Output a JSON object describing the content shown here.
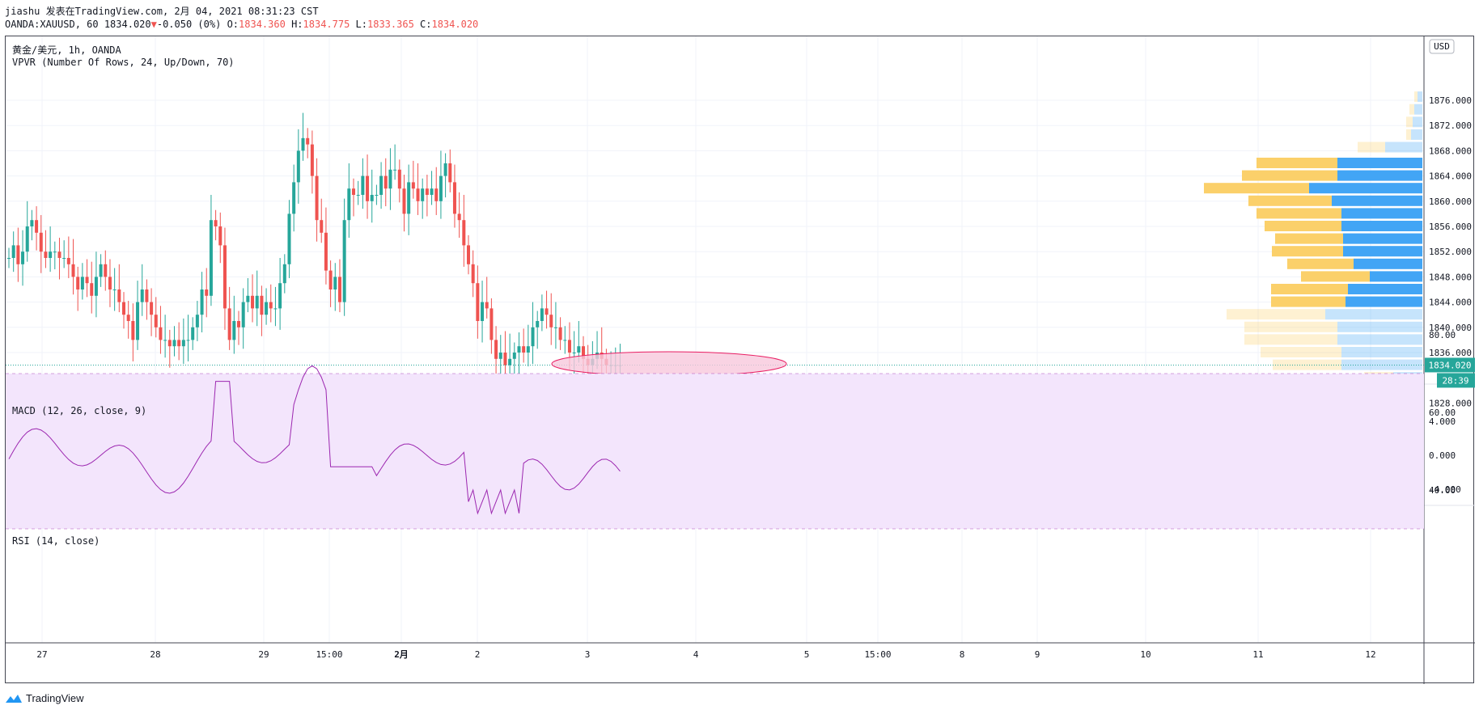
{
  "header": {
    "author_line": "jiashu 发表在TradingView.com, 2月 04, 2021 08:31:23 CST",
    "symbol_interval": "OANDA:XAUUSD, 60",
    "last": "1834.020",
    "change": "-0.050 (0%)",
    "o_label": "O:",
    "o": "1834.360",
    "h_label": "H:",
    "h": "1834.775",
    "l_label": "L:",
    "l": "1833.365",
    "c_label": "C:",
    "c": "1834.020"
  },
  "legend": {
    "main_title": "黄金/美元, 1h, OANDA",
    "vpvr": "VPVR (Number Of Rows, 24, Up/Down, 70)",
    "macd": "MACD (12, 26, close, 9)",
    "rsi": "RSI (14, close)"
  },
  "price_axis": {
    "currency_badge": "USD",
    "labels": [
      "1876.000",
      "1872.000",
      "1868.000",
      "1864.000",
      "1860.000",
      "1856.000",
      "1852.000",
      "1848.000",
      "1844.000",
      "1840.000",
      "1836.000",
      "1828.000"
    ],
    "last_price_tag": "1834.020",
    "countdown_tag": "28:39"
  },
  "macd_axis": {
    "labels": [
      "4.000",
      "0.000",
      "-4.000"
    ]
  },
  "rsi_axis": {
    "labels": [
      "80.00",
      "60.00",
      "40.00"
    ]
  },
  "time_axis": {
    "labels": [
      "27",
      "28",
      "29",
      "15:00",
      "2月",
      "2",
      "3",
      "4",
      "5",
      "15:00",
      "8",
      "9",
      "10",
      "11",
      "12"
    ]
  },
  "colors": {
    "up": "#26a69a",
    "down": "#ef5350",
    "vpvr_up": "#42a5f5",
    "vpvr_down": "#fbd06a",
    "macd_line": "#2196f3",
    "signal_line": "#ff6d00",
    "rsi_line": "#9c27b0",
    "rsi_band": "#f3e5fc",
    "ellipse_fill": "#f8c8dc",
    "ellipse_stroke": "#e91e63"
  },
  "footer": {
    "brand": "TradingView"
  }
}
